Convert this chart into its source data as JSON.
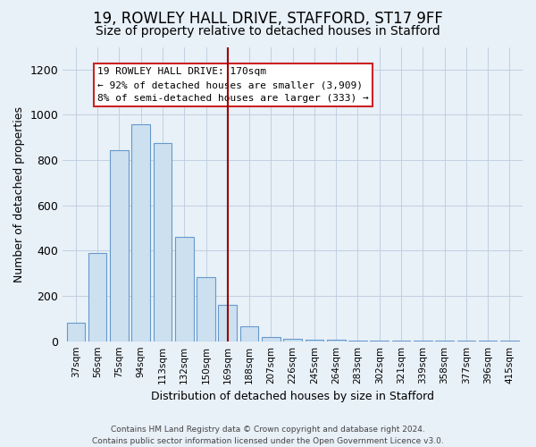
{
  "title": "19, ROWLEY HALL DRIVE, STAFFORD, ST17 9FF",
  "subtitle": "Size of property relative to detached houses in Stafford",
  "xlabel": "Distribution of detached houses by size in Stafford",
  "ylabel": "Number of detached properties",
  "categories": [
    "37sqm",
    "56sqm",
    "75sqm",
    "94sqm",
    "113sqm",
    "132sqm",
    "150sqm",
    "169sqm",
    "188sqm",
    "207sqm",
    "226sqm",
    "245sqm",
    "264sqm",
    "283sqm",
    "302sqm",
    "321sqm",
    "339sqm",
    "358sqm",
    "377sqm",
    "396sqm",
    "415sqm"
  ],
  "values": [
    80,
    390,
    845,
    960,
    875,
    460,
    285,
    160,
    65,
    20,
    10,
    8,
    5,
    4,
    3,
    3,
    2,
    2,
    1,
    1,
    1
  ],
  "bar_color": "#cce0f0",
  "bar_edge_color": "#6699cc",
  "vline_color": "#990000",
  "vline_x": 7,
  "annotation_text": "19 ROWLEY HALL DRIVE: 170sqm\n← 92% of detached houses are smaller (3,909)\n8% of semi-detached houses are larger (333) →",
  "annotation_box_color": "#ffffff",
  "annotation_box_edge": "#cc2222",
  "ylim": [
    0,
    1300
  ],
  "yticks": [
    0,
    200,
    400,
    600,
    800,
    1000,
    1200
  ],
  "footer": "Contains HM Land Registry data © Crown copyright and database right 2024.\nContains public sector information licensed under the Open Government Licence v3.0.",
  "bg_color": "#e8f0f8",
  "plot_bg_color": "#e8f0f8",
  "title_fontsize": 12,
  "subtitle_fontsize": 10,
  "ylabel_fontsize": 9,
  "xlabel_fontsize": 9,
  "tick_fontsize": 7.5,
  "footer_fontsize": 6.5
}
